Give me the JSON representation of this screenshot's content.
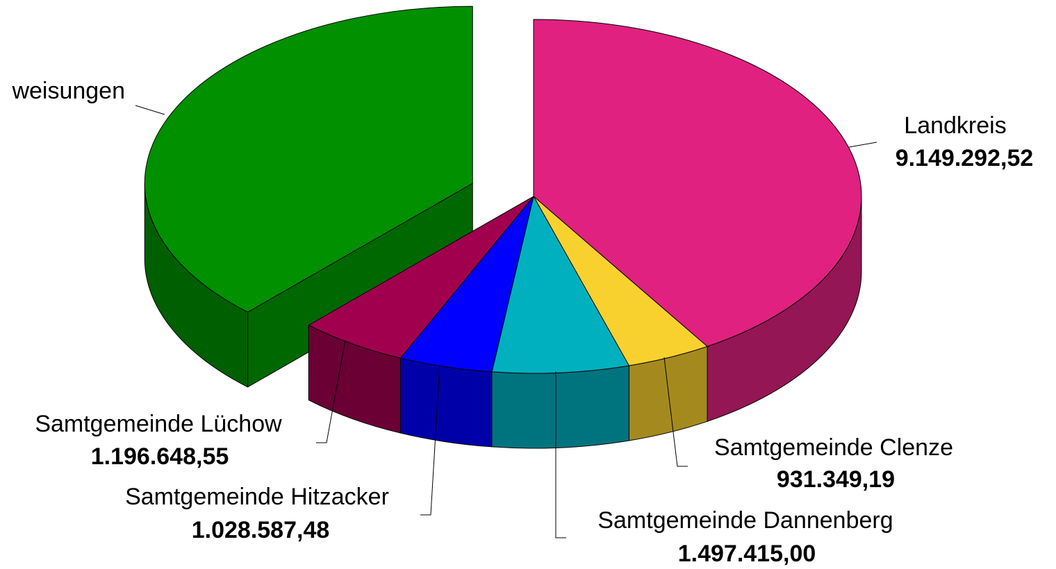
{
  "chart_data": {
    "type": "pie3d",
    "categories": [
      "Landkreis",
      "Samtgemeinde Clenze",
      "Samtgemeinde Dannenberg",
      "Samtgemeinde Hitzacker",
      "Samtgemeinde Lüchow",
      "weisungen"
    ],
    "values": [
      9149292.52,
      931349.19,
      1497415.0,
      1028587.48,
      1196648.55,
      8450000
    ],
    "value_labels": [
      "9.149.292,52",
      "931.349,19",
      "1.497.415,00",
      "1.028.587,48",
      "1.196.648,55",
      null
    ],
    "colors": [
      "#e0217f",
      "#f9d12e",
      "#00b0bf",
      "#0000ff",
      "#a1004f",
      "#009000"
    ],
    "explode": [
      false,
      false,
      false,
      false,
      false,
      true
    ]
  }
}
